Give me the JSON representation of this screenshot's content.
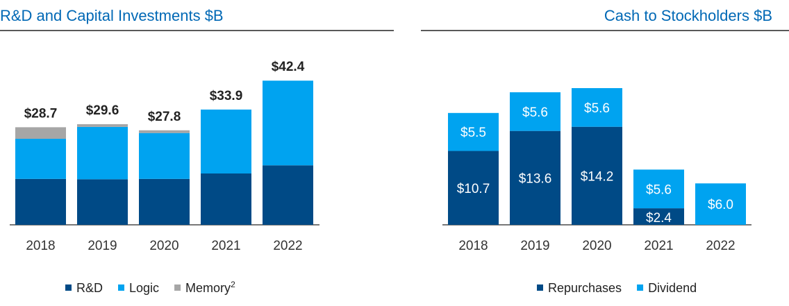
{
  "chart_data": [
    {
      "type": "bar",
      "stacked": true,
      "title": "R&D and Capital Investments $B",
      "categories": [
        "2018",
        "2019",
        "2020",
        "2021",
        "2022"
      ],
      "series": [
        {
          "name": "R&D",
          "color": "#004a86",
          "values": [
            13.5,
            13.4,
            13.5,
            15.1,
            17.5
          ]
        },
        {
          "name": "Logic",
          "color": "#00a3f0",
          "values": [
            11.8,
            15.4,
            13.5,
            18.8,
            24.9
          ]
        },
        {
          "name": "Memory",
          "name_superscript": "2",
          "color": "#a6a6a6",
          "values": [
            3.4,
            0.8,
            0.8,
            0,
            0
          ]
        }
      ],
      "totals": [
        "$28.7",
        "$29.6",
        "$27.8",
        "$33.9",
        "$42.4"
      ],
      "legend": "bottom",
      "grid": false
    },
    {
      "type": "bar",
      "stacked": true,
      "title": "Cash to Stockholders $B",
      "categories": [
        "2018",
        "2019",
        "2020",
        "2021",
        "2022"
      ],
      "series": [
        {
          "name": "Repurchases",
          "color": "#004a86",
          "values": [
            10.7,
            13.6,
            14.2,
            2.4,
            0
          ],
          "labels": [
            "$10.7",
            "$13.6",
            "$14.2",
            "$2.4",
            ""
          ]
        },
        {
          "name": "Dividend",
          "color": "#00a3f0",
          "values": [
            5.5,
            5.6,
            5.6,
            5.6,
            6.0
          ],
          "labels": [
            "$5.5",
            "$5.6",
            "$5.6",
            "$5.6",
            "$6.0"
          ]
        }
      ],
      "legend": "bottom",
      "grid": false
    }
  ]
}
